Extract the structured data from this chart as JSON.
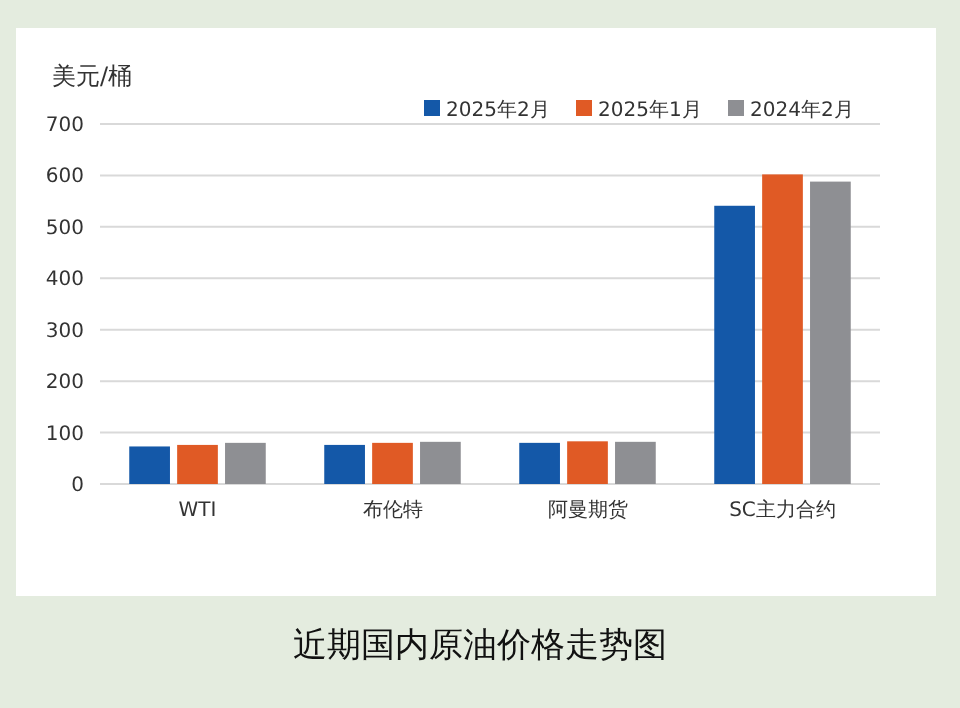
{
  "chart_data": {
    "type": "bar",
    "title": "近期国内原油价格走势图",
    "ylabel": "美元/桶",
    "categories": [
      "WTI",
      "布伦特",
      "阿曼期货",
      "SC主力合约"
    ],
    "series": [
      {
        "name": "2025年2月",
        "color": "#1458a8",
        "values": [
          73,
          76,
          80,
          541
        ]
      },
      {
        "name": "2025年1月",
        "color": "#e05a25",
        "values": [
          76,
          80,
          83,
          602
        ]
      },
      {
        "name": "2024年2月",
        "color": "#8e8f93",
        "values": [
          80,
          82,
          82,
          588
        ]
      }
    ],
    "ylim": [
      0,
      700
    ],
    "yticks": [
      0,
      100,
      200,
      300,
      400,
      500,
      600,
      700
    ],
    "grid": "y",
    "legend": "top right"
  }
}
